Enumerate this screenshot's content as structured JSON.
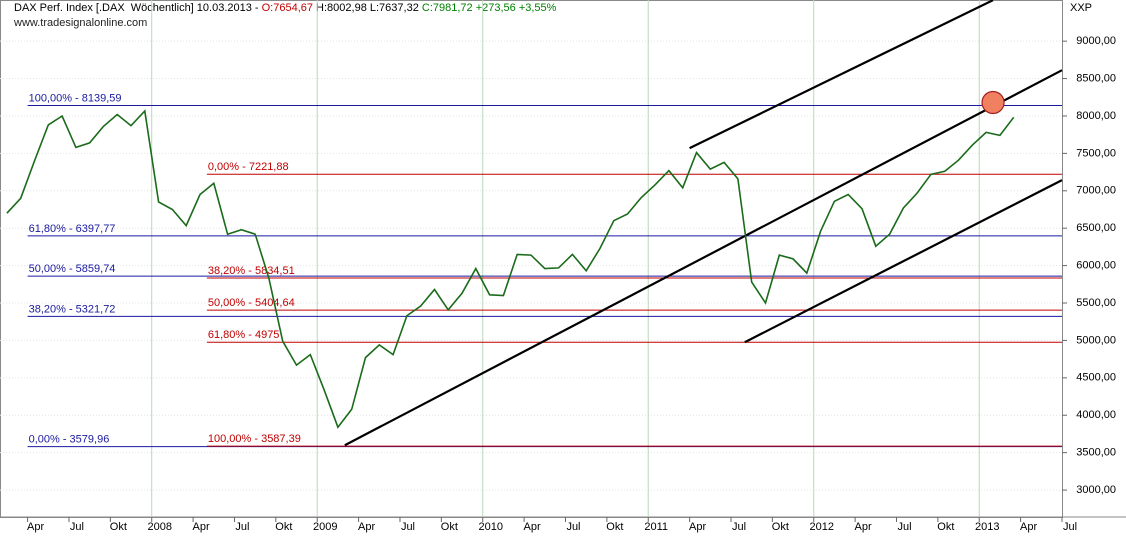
{
  "chart_data": {
    "type": "line",
    "header": [
      {
        "text": "DAX Perf. Index [.DAX  Wöchentlich] 10.03.2013 - ",
        "color": "#000000"
      },
      {
        "text": "O:7654,67",
        "color": "#c00000"
      },
      {
        "text": " H:8002,98 L:7637,32 ",
        "color": "#000000"
      },
      {
        "text": "C:7981,72 +273,56 +3,55%",
        "color": "#008000"
      }
    ],
    "watermark": "www.tradesignalonline.com",
    "symbol": "XXP",
    "x": [
      "2007-02",
      "2007-03",
      "2007-04",
      "2007-05",
      "2007-06",
      "2007-07",
      "2007-08",
      "2007-09",
      "2007-10",
      "2007-11",
      "2007-12",
      "2008-01",
      "2008-02",
      "2008-03",
      "2008-04",
      "2008-05",
      "2008-06",
      "2008-07",
      "2008-08",
      "2008-09",
      "2008-10",
      "2008-11",
      "2008-12",
      "2009-01",
      "2009-02",
      "2009-03",
      "2009-04",
      "2009-05",
      "2009-06",
      "2009-07",
      "2009-08",
      "2009-09",
      "2009-10",
      "2009-11",
      "2009-12",
      "2010-01",
      "2010-02",
      "2010-03",
      "2010-04",
      "2010-05",
      "2010-06",
      "2010-07",
      "2010-08",
      "2010-09",
      "2010-10",
      "2010-11",
      "2010-12",
      "2011-01",
      "2011-02",
      "2011-03",
      "2011-04",
      "2011-05",
      "2011-06",
      "2011-07",
      "2011-08",
      "2011-09",
      "2011-10",
      "2011-11",
      "2011-12",
      "2012-01",
      "2012-02",
      "2012-03",
      "2012-04",
      "2012-05",
      "2012-06",
      "2012-07",
      "2012-08",
      "2012-09",
      "2012-10",
      "2012-11",
      "2012-12",
      "2013-01",
      "2013-02",
      "2013-03"
    ],
    "series": [
      {
        "name": "DAX",
        "color": "#1a6b1a",
        "values": [
          6700,
          6900,
          7400,
          7880,
          8000,
          7580,
          7640,
          7860,
          8020,
          7870,
          8067,
          6850,
          6750,
          6535,
          6950,
          7100,
          6420,
          6480,
          6420,
          5830,
          4990,
          4670,
          4810,
          4340,
          3840,
          4080,
          4770,
          4940,
          4810,
          5330,
          5460,
          5680,
          5410,
          5630,
          5960,
          5610,
          5600,
          6150,
          6140,
          5960,
          5970,
          6150,
          5930,
          6230,
          6600,
          6690,
          6910,
          7080,
          7270,
          7040,
          7510,
          7290,
          7380,
          7160,
          5780,
          5500,
          6140,
          6090,
          5900,
          6460,
          6860,
          6950,
          6760,
          6260,
          6420,
          6770,
          6970,
          7220,
          7260,
          7410,
          7610,
          7780,
          7740,
          7982
        ]
      }
    ],
    "xlim": [
      "2007-02",
      "2013-07"
    ],
    "ylim": [
      2640,
      9550
    ],
    "yticks": [
      {
        "value": 3000,
        "label": "3000,00"
      },
      {
        "value": 3500,
        "label": "3500,00"
      },
      {
        "value": 4000,
        "label": "4000,00"
      },
      {
        "value": 4500,
        "label": "4500,00"
      },
      {
        "value": 5000,
        "label": "5000,00"
      },
      {
        "value": 5500,
        "label": "5500,00"
      },
      {
        "value": 6000,
        "label": "6000,00"
      },
      {
        "value": 6500,
        "label": "6500,00"
      },
      {
        "value": 7000,
        "label": "7000,00"
      },
      {
        "value": 7500,
        "label": "7500,00"
      },
      {
        "value": 8000,
        "label": "8000,00"
      },
      {
        "value": 8500,
        "label": "8500,00"
      },
      {
        "value": 9000,
        "label": "9000,00"
      }
    ],
    "xticks": [
      {
        "value": "2007-04",
        "label": "Apr"
      },
      {
        "value": "2007-07",
        "label": "Jul"
      },
      {
        "value": "2007-10",
        "label": "Okt"
      },
      {
        "value": "2008-01",
        "label": "2008"
      },
      {
        "value": "2008-04",
        "label": "Apr"
      },
      {
        "value": "2008-07",
        "label": "Jul"
      },
      {
        "value": "2008-10",
        "label": "Okt"
      },
      {
        "value": "2009-01",
        "label": "2009"
      },
      {
        "value": "2009-04",
        "label": "Apr"
      },
      {
        "value": "2009-07",
        "label": "Jul"
      },
      {
        "value": "2009-10",
        "label": "Okt"
      },
      {
        "value": "2010-01",
        "label": "2010"
      },
      {
        "value": "2010-04",
        "label": "Apr"
      },
      {
        "value": "2010-07",
        "label": "Jul"
      },
      {
        "value": "2010-10",
        "label": "Okt"
      },
      {
        "value": "2011-01",
        "label": "2011"
      },
      {
        "value": "2011-04",
        "label": "Apr"
      },
      {
        "value": "2011-07",
        "label": "Jul"
      },
      {
        "value": "2011-10",
        "label": "Okt"
      },
      {
        "value": "2012-01",
        "label": "2012"
      },
      {
        "value": "2012-04",
        "label": "Apr"
      },
      {
        "value": "2012-07",
        "label": "Jul"
      },
      {
        "value": "2012-10",
        "label": "Okt"
      },
      {
        "value": "2013-01",
        "label": "2013"
      },
      {
        "value": "2013-04",
        "label": "Apr"
      },
      {
        "value": "2013-07",
        "label": "Jul"
      }
    ],
    "levels": [
      {
        "value": 8139.59,
        "label": "100,00% - 8139,59",
        "color": "#1a1aa0",
        "start": "2007-04"
      },
      {
        "value": 6397.77,
        "label": "61,80% - 6397,77",
        "color": "#1a1aa0",
        "start": "2007-04"
      },
      {
        "value": 5859.74,
        "label": "50,00% - 5859,74",
        "color": "#1a1aa0",
        "start": "2007-04"
      },
      {
        "value": 5321.72,
        "label": "38,20% - 5321,72",
        "color": "#1a1aa0",
        "start": "2007-04"
      },
      {
        "value": 3579.96,
        "label": "0,00% - 3579,96",
        "color": "#1a1aa0",
        "start": "2007-04"
      },
      {
        "value": 7221.88,
        "label": "0,00% - 7221,88",
        "color": "#c00000",
        "start": "2008-05"
      },
      {
        "value": 5834.51,
        "label": "38,20% - 5834,51",
        "color": "#c00000",
        "start": "2008-05"
      },
      {
        "value": 5404.64,
        "label": "50,00% - 5404,64",
        "color": "#c00000",
        "start": "2008-05"
      },
      {
        "value": 4975,
        "label": "61,80% - 4975",
        "color": "#c00000",
        "start": "2008-05"
      },
      {
        "value": 3587.39,
        "label": "100,00% - 3587,39",
        "color": "#c00000",
        "start": "2008-05"
      }
    ],
    "trendlines": [
      {
        "x": [
          "2009-03",
          "2013-07"
        ],
        "y": [
          3599,
          8612
        ]
      },
      {
        "x": [
          "2011-08",
          "2013-07"
        ],
        "y": [
          4976,
          7142
        ]
      },
      {
        "x": [
          "2011-04",
          "2013-02"
        ],
        "y": [
          7570,
          9548
        ]
      }
    ],
    "marker": {
      "x": "2013-02",
      "y": 8180,
      "color": "#f08060"
    },
    "grid": true
  }
}
